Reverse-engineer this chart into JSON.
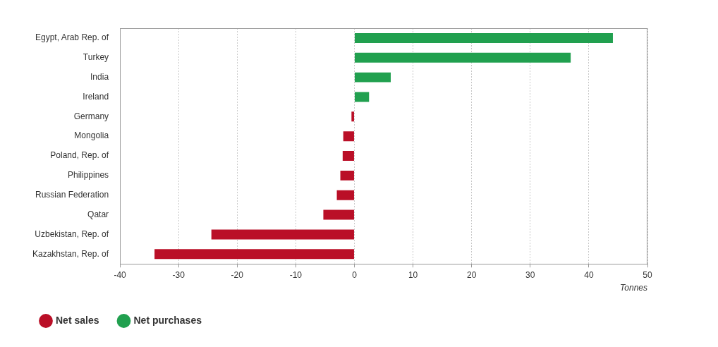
{
  "chart_data": {
    "type": "bar",
    "orientation": "horizontal",
    "stacked": true,
    "xlabel": "Tonnes",
    "categories": [
      "Egypt, Arab Rep. of",
      "Turkey",
      "India",
      "Ireland",
      "Germany",
      "Mongolia",
      "Poland, Rep. of",
      "Philippines",
      "Russian Federation",
      "Qatar",
      "Uzbekistan, Rep. of",
      "Kazakhstan, Rep. of"
    ],
    "series": [
      {
        "name": "Net sales",
        "color": "#ba0f27",
        "values": [
          null,
          null,
          null,
          null,
          -0.5,
          -1.9,
          -2.0,
          -2.4,
          -3.0,
          -5.3,
          -24.4,
          -34.1
        ]
      },
      {
        "name": "Net purchases",
        "color": "#21a04f",
        "values": [
          44.1,
          36.9,
          6.2,
          2.5,
          null,
          null,
          null,
          null,
          null,
          null,
          null,
          null
        ]
      }
    ],
    "xlim": [
      -40,
      50
    ],
    "xticks": [
      -40,
      -30,
      -20,
      -10,
      0,
      10,
      20,
      30,
      40,
      50
    ],
    "grid": "x",
    "legend": "bottom left"
  }
}
